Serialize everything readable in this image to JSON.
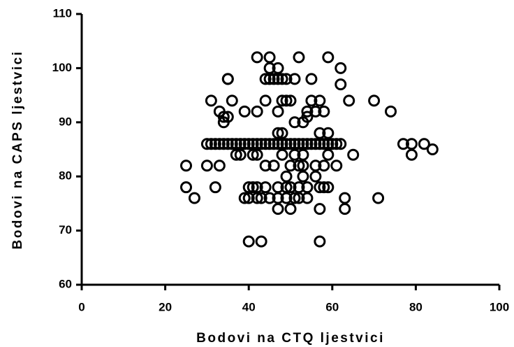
{
  "chart_data": {
    "type": "scatter",
    "xlabel": "Bodovi na CTQ ljestvici",
    "ylabel": "Bodovi na CAPS ljestvici",
    "color": "#000000",
    "xlim": [
      0,
      100
    ],
    "xticks": [
      0,
      20,
      40,
      60,
      80,
      100
    ],
    "ylim": [
      60,
      110
    ],
    "yticks": [
      60,
      70,
      80,
      90,
      100,
      110
    ],
    "x": [
      42,
      45,
      52,
      59,
      45,
      47,
      62,
      35,
      35,
      44,
      45,
      46,
      47,
      48,
      49,
      51,
      55,
      62,
      31,
      36,
      44,
      48,
      49,
      50,
      55,
      57,
      64,
      70,
      33,
      39,
      42,
      47,
      54,
      56,
      58,
      74,
      34,
      35,
      54,
      34,
      51,
      53,
      47,
      48,
      57,
      59,
      30,
      31,
      32,
      33,
      34,
      35,
      36,
      37,
      38,
      39,
      40,
      41,
      42,
      43,
      44,
      45,
      46,
      47,
      48,
      49,
      50,
      51,
      52,
      53,
      54,
      55,
      56,
      57,
      58,
      59,
      60,
      61,
      62,
      77,
      79,
      82,
      84,
      37,
      38,
      41,
      42,
      48,
      51,
      53,
      59,
      65,
      79,
      25,
      30,
      33,
      44,
      46,
      50,
      52,
      53,
      56,
      58,
      61,
      49,
      53,
      56,
      25,
      32,
      40,
      41,
      42,
      44,
      47,
      49,
      50,
      52,
      54,
      57,
      58,
      59,
      27,
      39,
      40,
      42,
      43,
      45,
      47,
      49,
      51,
      52,
      54,
      63,
      71,
      47,
      50,
      57,
      63,
      40,
      43,
      57
    ],
    "y": [
      102,
      102,
      102,
      102,
      100,
      100,
      100,
      98,
      98,
      98,
      98,
      98,
      98,
      98,
      98,
      98,
      98,
      97,
      94,
      94,
      94,
      94,
      94,
      94,
      94,
      94,
      94,
      94,
      92,
      92,
      92,
      92,
      92,
      92,
      92,
      92,
      91,
      91,
      91,
      90,
      90,
      90,
      88,
      88,
      88,
      88,
      86,
      86,
      86,
      86,
      86,
      86,
      86,
      86,
      86,
      86,
      86,
      86,
      86,
      86,
      86,
      86,
      86,
      86,
      86,
      86,
      86,
      86,
      86,
      86,
      86,
      86,
      86,
      86,
      86,
      86,
      86,
      86,
      86,
      86,
      86,
      86,
      85,
      84,
      84,
      84,
      84,
      84,
      84,
      84,
      84,
      84,
      84,
      82,
      82,
      82,
      82,
      82,
      82,
      82,
      82,
      82,
      82,
      82,
      80,
      80,
      80,
      78,
      78,
      78,
      78,
      78,
      78,
      78,
      78,
      78,
      78,
      78,
      78,
      78,
      78,
      76,
      76,
      76,
      76,
      76,
      76,
      76,
      76,
      76,
      76,
      76,
      76,
      76,
      74,
      74,
      74,
      74,
      68,
      68,
      68
    ]
  }
}
